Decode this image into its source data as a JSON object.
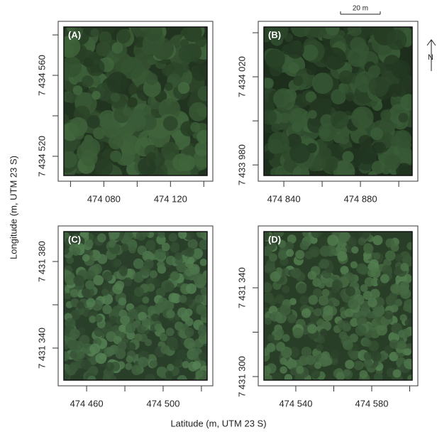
{
  "chart_data": [
    {
      "type": "image",
      "panel_label": "(A)",
      "xlim": [
        474056,
        474142
      ],
      "ylim": [
        7434510.5,
        7434583.9
      ],
      "xticks": [
        {
          "value": 474080,
          "label": "474 080"
        },
        {
          "value": 474120,
          "label": "474 120"
        }
      ],
      "xminorticks": [
        474060,
        474100,
        474140
      ],
      "yticks": [
        {
          "value": 7434520,
          "label": "7 434 520"
        },
        {
          "value": 7434560,
          "label": "7 434 560"
        }
      ],
      "yminorticks": [
        7434540,
        7434580
      ],
      "color": "#2f4a2c"
    },
    {
      "type": "image",
      "panel_label": "(B)",
      "xlim": [
        474829.6,
        474907
      ],
      "ylim": [
        7433975.2,
        7434042.6
      ],
      "xticks": [
        {
          "value": 474840,
          "label": "474 840"
        },
        {
          "value": 474880,
          "label": "474 880"
        }
      ],
      "xminorticks": [
        474860,
        474900
      ],
      "yticks": [
        {
          "value": 7433980,
          "label": "7 433 980"
        },
        {
          "value": 7434020,
          "label": "7 434 020"
        }
      ],
      "yminorticks": [
        7434000,
        7434040
      ],
      "color": "#2a4328"
    },
    {
      "type": "image",
      "panel_label": "(C)",
      "xlim": [
        474448.1,
        474523
      ],
      "ylim": [
        7431325.2,
        7431393.8
      ],
      "xticks": [
        {
          "value": 474460,
          "label": "474 460"
        },
        {
          "value": 474500,
          "label": "474 500"
        }
      ],
      "xminorticks": [
        474480,
        474520
      ],
      "yticks": [
        {
          "value": 7431340,
          "label": "7 431 340"
        },
        {
          "value": 7431380,
          "label": "7 431 380"
        }
      ],
      "yminorticks": [
        7431360
      ],
      "color": "#3b5a3a"
    },
    {
      "type": "image",
      "panel_label": "(D)",
      "xlim": [
        474523.2,
        474601.3
      ],
      "ylim": [
        7431298.4,
        7431365.3
      ],
      "xticks": [
        {
          "value": 474540,
          "label": "474 540"
        },
        {
          "value": 474580,
          "label": "474 580"
        }
      ],
      "xminorticks": [
        474560,
        474600
      ],
      "yticks": [
        {
          "value": 7431300,
          "label": "7 431 300"
        },
        {
          "value": 7431340,
          "label": "7 431 340"
        }
      ],
      "yminorticks": [
        7431320
      ],
      "color": "#3a5838"
    }
  ],
  "xlabel": "Latitude (m, UTM 23 S)",
  "ylabel": "Longitude (m, UTM 23 S)",
  "scale_bar": "20 m",
  "north": "N"
}
